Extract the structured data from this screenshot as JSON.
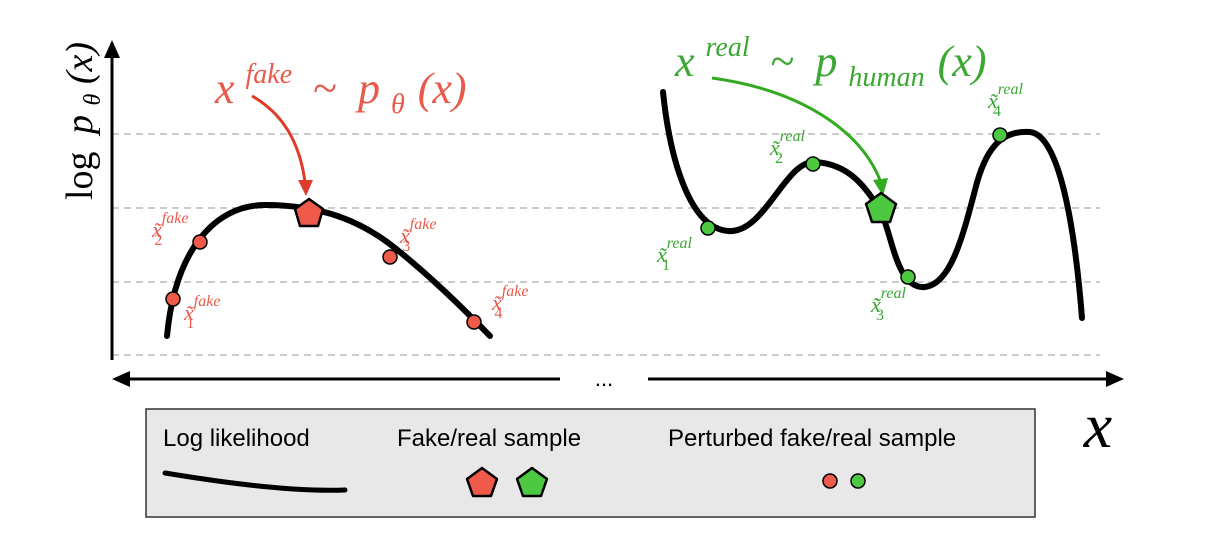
{
  "yaxis": {
    "label_log": "log",
    "label_p": "p",
    "label_sub": "θ",
    "label_arg": "(x)"
  },
  "xaxis": {
    "label": "x",
    "ellipsis": "..."
  },
  "fake_formula": {
    "x": "x",
    "sup": "fake",
    "tilde": "~",
    "p": "p",
    "sub": "θ",
    "arg": "(x)"
  },
  "real_formula": {
    "x": "x",
    "sup": "real",
    "tilde": "~",
    "p": "p",
    "sub": "human",
    "arg": "(x)"
  },
  "fake_perturbed": [
    {
      "base": "x̃",
      "sup": "fake",
      "sub": "1"
    },
    {
      "base": "x̃",
      "sup": "fake",
      "sub": "2"
    },
    {
      "base": "x̃",
      "sup": "fake",
      "sub": "3"
    },
    {
      "base": "x̃",
      "sup": "fake",
      "sub": "4"
    }
  ],
  "real_perturbed": [
    {
      "base": "x̃",
      "sup": "real",
      "sub": "1"
    },
    {
      "base": "x̃",
      "sup": "real",
      "sub": "2"
    },
    {
      "base": "x̃",
      "sup": "real",
      "sub": "3"
    },
    {
      "base": "x̃",
      "sup": "real",
      "sub": "4"
    }
  ],
  "legend": {
    "log_likelihood": "Log likelihood",
    "sample": "Fake/real sample",
    "perturbed": "Perturbed fake/real sample"
  },
  "colors": {
    "fake": "#f05a4a",
    "fake_text": "#e85a4a",
    "real": "#4cc940",
    "real_text": "#3aa832",
    "arrow_fake": "#e03a28",
    "arrow_real": "#33aa22",
    "grid": "#cccccc",
    "legend_bg": "#e8e8e8"
  }
}
